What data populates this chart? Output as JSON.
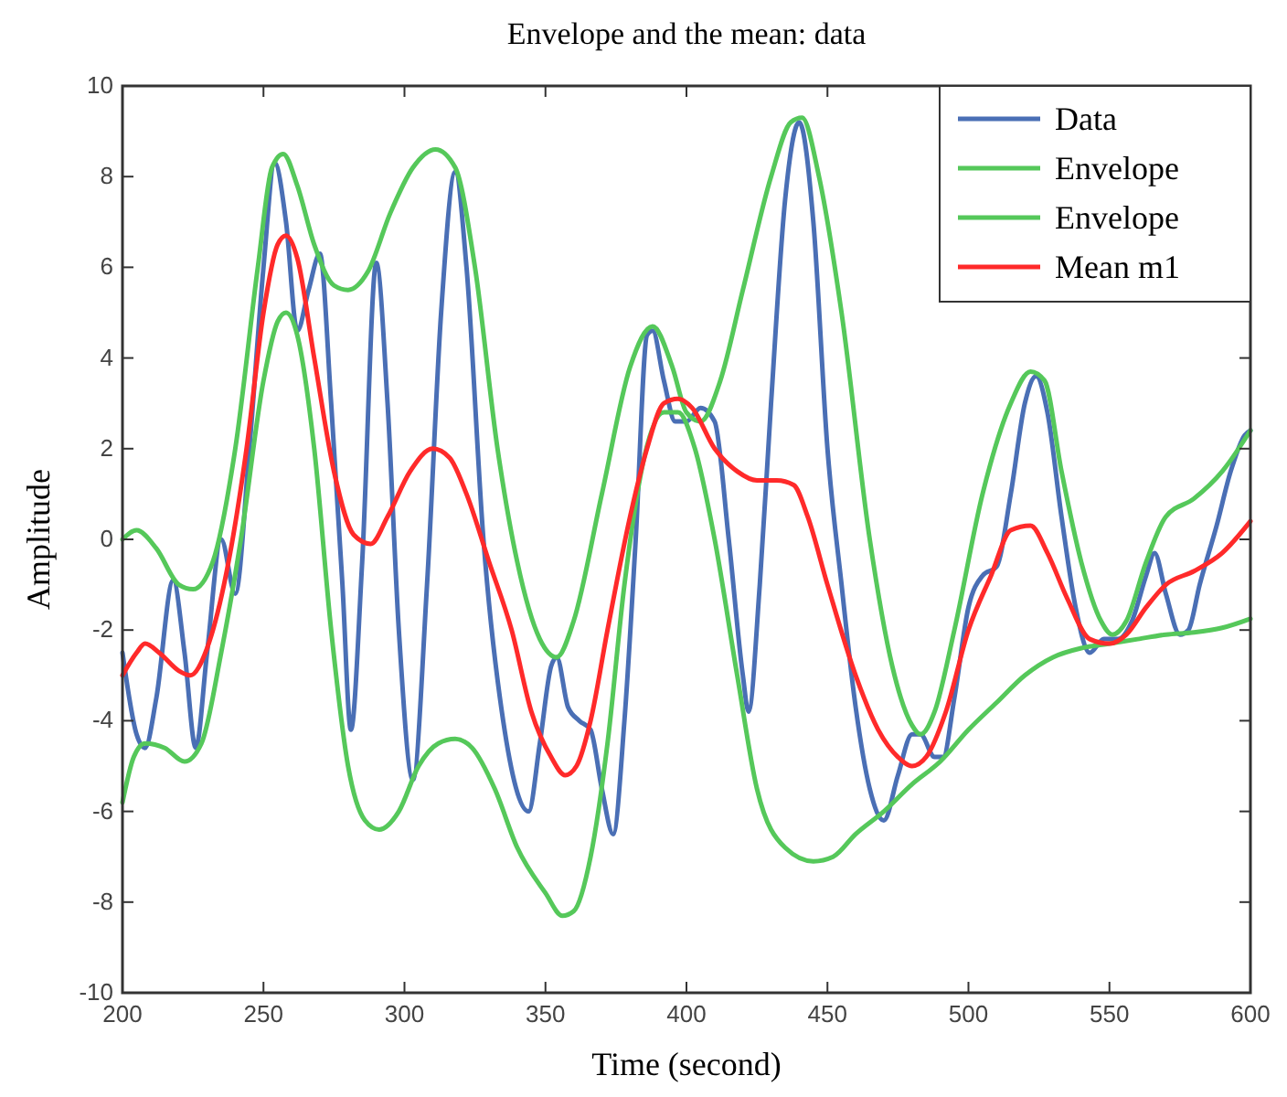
{
  "chart_data": {
    "type": "line",
    "title": "Envelope and the mean: data",
    "xlabel": "Time (second)",
    "ylabel": "Amplitude",
    "xlim": [
      200,
      600
    ],
    "ylim": [
      -10,
      10
    ],
    "xticks": [
      200,
      250,
      300,
      350,
      400,
      450,
      500,
      550,
      600
    ],
    "yticks": [
      -10,
      -8,
      -6,
      -4,
      -2,
      0,
      2,
      4,
      6,
      8,
      10
    ],
    "grid": false,
    "legend": "top right",
    "marker": "none",
    "line_style": "solid",
    "series": [
      {
        "name": "Data",
        "color": "#4a6fb5",
        "x": [
          200,
          205,
          208,
          212,
          218,
          222,
          226,
          230,
          235,
          240,
          245,
          250,
          254,
          258,
          262,
          266,
          270,
          274,
          278,
          281,
          285,
          290,
          294,
          298,
          303,
          308,
          313,
          318,
          322,
          328,
          335,
          344,
          348,
          352,
          354,
          358,
          362,
          366,
          370,
          374,
          378,
          382,
          386,
          388,
          392,
          396,
          400,
          405,
          410,
          415,
          420,
          422,
          426,
          430,
          435,
          440,
          445,
          450,
          455,
          460,
          465,
          470,
          475,
          480,
          483,
          488,
          491,
          495,
          500,
          505,
          510,
          515,
          520,
          524,
          528,
          533,
          538,
          543,
          548,
          553,
          558,
          563,
          566,
          570,
          575,
          578,
          582,
          588,
          593,
          598,
          600
        ],
        "values": [
          -2.5,
          -4.3,
          -4.6,
          -3.5,
          -0.9,
          -2.5,
          -4.6,
          -2.5,
          0,
          -1.2,
          2,
          6,
          8.3,
          7,
          4.6,
          5.5,
          6.3,
          3,
          -1,
          -4.2,
          -0.5,
          6.1,
          3,
          -2,
          -5.3,
          -1,
          5,
          8.1,
          6,
          0,
          -4,
          -6,
          -4.5,
          -2.8,
          -2.6,
          -3.7,
          -4,
          -4.2,
          -5.5,
          -6.5,
          -4,
          0,
          4.5,
          4.6,
          3.5,
          2.6,
          2.6,
          2.9,
          2.6,
          0,
          -3,
          -3.8,
          -1,
          3,
          7.5,
          9.2,
          7,
          2,
          -1,
          -3.7,
          -5.5,
          -6.2,
          -5.2,
          -4.3,
          -4.3,
          -4.8,
          -4.8,
          -3.5,
          -1.5,
          -0.8,
          -0.6,
          1,
          3,
          3.6,
          2.8,
          0.5,
          -1.5,
          -2.5,
          -2.2,
          -2.2,
          -1.8,
          -0.8,
          -0.3,
          -1.2,
          -2.1,
          -2,
          -1,
          0.3,
          1.5,
          2.3,
          2.4
        ]
      },
      {
        "name": "Envelope",
        "color": "#55c85a",
        "x": [
          200,
          205,
          212,
          220,
          225,
          232,
          240,
          248,
          253,
          257,
          262,
          268,
          275,
          280,
          287,
          295,
          303,
          311,
          318,
          325,
          333,
          340,
          348,
          354,
          360,
          370,
          380,
          388,
          395,
          400,
          405,
          412,
          420,
          430,
          437,
          441,
          447,
          455,
          465,
          473,
          480,
          483,
          488,
          495,
          505,
          515,
          522,
          527,
          533,
          540,
          547,
          551,
          556,
          563,
          570,
          580,
          590,
          600
        ],
        "values": [
          0,
          0.2,
          -0.2,
          -1,
          -1.1,
          -0.5,
          2,
          6,
          8.2,
          8.5,
          7.8,
          6.5,
          5.6,
          5.5,
          5.9,
          7.2,
          8.2,
          8.6,
          8.2,
          6,
          2,
          -0.5,
          -2.2,
          -2.6,
          -1.8,
          1,
          3.8,
          4.7,
          3.8,
          2.8,
          2.6,
          3.5,
          5.5,
          8,
          9.2,
          9.3,
          8,
          5,
          0,
          -2.8,
          -4.1,
          -4.3,
          -3.8,
          -2,
          1,
          3,
          3.7,
          3.5,
          1.5,
          -0.5,
          -1.8,
          -2.1,
          -1.8,
          -0.5,
          0.5,
          0.9,
          1.5,
          2.4
        ]
      },
      {
        "name": "Envelope",
        "color": "#55c85a",
        "x": [
          200,
          204,
          208,
          215,
          222,
          228,
          235,
          242,
          250,
          255,
          258,
          262,
          268,
          274,
          280,
          286,
          291,
          298,
          305,
          312,
          318,
          324,
          332,
          340,
          350,
          356,
          360,
          366,
          372,
          378,
          385,
          392,
          397,
          403,
          410,
          418,
          425,
          435,
          445,
          452,
          460,
          470,
          480,
          490,
          500,
          510,
          520,
          530,
          540,
          550,
          560,
          570,
          580,
          590,
          600
        ],
        "values": [
          -5.8,
          -4.8,
          -4.5,
          -4.6,
          -4.9,
          -4.5,
          -2.5,
          0,
          3.5,
          4.8,
          5,
          4.5,
          2,
          -2,
          -5,
          -6.2,
          -6.4,
          -6,
          -5,
          -4.5,
          -4.4,
          -4.6,
          -5.5,
          -6.8,
          -7.8,
          -8.3,
          -8.2,
          -7,
          -4.5,
          -1,
          1.8,
          2.8,
          2.8,
          2,
          0,
          -3,
          -5.5,
          -6.8,
          -7.1,
          -7,
          -6.5,
          -6,
          -5.4,
          -4.9,
          -4.2,
          -3.6,
          -3,
          -2.6,
          -2.4,
          -2.3,
          -2.2,
          -2.1,
          -2.05,
          -1.95,
          -1.75
        ]
      },
      {
        "name": "Mean m1",
        "color": "#ff2a2a",
        "x": [
          200,
          205,
          208,
          213,
          220,
          224,
          230,
          236,
          244,
          250,
          255,
          258,
          262,
          268,
          275,
          282,
          288,
          294,
          302,
          310,
          316,
          322,
          330,
          338,
          345,
          352,
          357,
          361,
          366,
          372,
          380,
          386,
          392,
          397,
          402,
          410,
          418,
          425,
          432,
          438,
          443,
          450,
          460,
          468,
          475,
          480,
          485,
          492,
          500,
          508,
          515,
          522,
          528,
          535,
          543,
          550,
          556,
          563,
          570,
          580,
          590,
          600
        ],
        "values": [
          -3,
          -2.5,
          -2.3,
          -2.5,
          -2.9,
          -3,
          -2.4,
          -1,
          2,
          5,
          6.5,
          6.7,
          6.2,
          4,
          1.5,
          0.1,
          -0.1,
          0.5,
          1.5,
          2,
          1.8,
          1,
          -0.5,
          -2,
          -3.8,
          -4.8,
          -5.2,
          -5,
          -4,
          -2,
          0.5,
          2,
          3,
          3.1,
          2.9,
          2,
          1.5,
          1.3,
          1.3,
          1.2,
          0.5,
          -1,
          -3,
          -4.2,
          -4.8,
          -5,
          -4.8,
          -3.8,
          -2,
          -0.8,
          0.2,
          0.3,
          -0.3,
          -1.3,
          -2.2,
          -2.3,
          -2.1,
          -1.5,
          -1,
          -0.7,
          -0.3,
          0.4
        ]
      }
    ]
  }
}
